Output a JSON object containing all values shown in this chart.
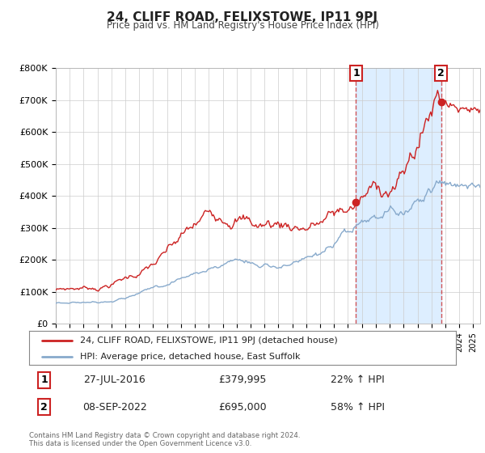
{
  "title": "24, CLIFF ROAD, FELIXSTOWE, IP11 9PJ",
  "subtitle": "Price paid vs. HM Land Registry's House Price Index (HPI)",
  "ylim": [
    0,
    800000
  ],
  "xlim_start": 1995.0,
  "xlim_end": 2025.5,
  "red_line_color": "#cc2222",
  "blue_line_color": "#88aacc",
  "shade_color": "#ddeeff",
  "marker1_date": 2016.58,
  "marker1_value": 379995,
  "marker2_date": 2022.69,
  "marker2_value": 695000,
  "legend_label_red": "24, CLIFF ROAD, FELIXSTOWE, IP11 9PJ (detached house)",
  "legend_label_blue": "HPI: Average price, detached house, East Suffolk",
  "table_row1": [
    "1",
    "27-JUL-2016",
    "£379,995",
    "22% ↑ HPI"
  ],
  "table_row2": [
    "2",
    "08-SEP-2022",
    "£695,000",
    "58% ↑ HPI"
  ],
  "footnote": "Contains HM Land Registry data © Crown copyright and database right 2024.\nThis data is licensed under the Open Government Licence v3.0.",
  "background_color": "#ffffff",
  "grid_color": "#cccccc",
  "ytick_labels": [
    "£0",
    "£100K",
    "£200K",
    "£300K",
    "£400K",
    "£500K",
    "£600K",
    "£700K",
    "£800K"
  ],
  "ytick_values": [
    0,
    100000,
    200000,
    300000,
    400000,
    500000,
    600000,
    700000,
    800000
  ]
}
